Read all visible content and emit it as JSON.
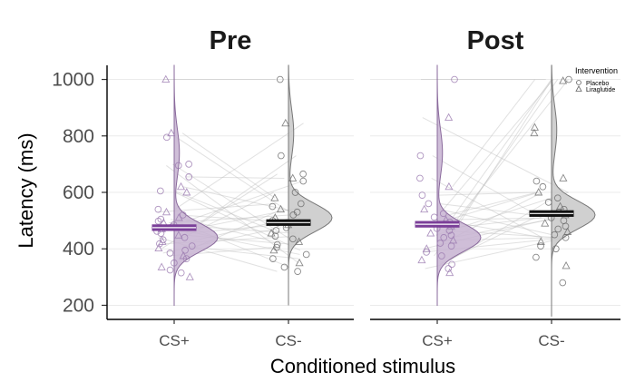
{
  "chart_data": {
    "type": "raincloud",
    "ylabel": "Latency (ms)",
    "xlabel": "Conditioned stimulus",
    "yticks": [
      200,
      400,
      600,
      800,
      1000
    ],
    "ylim": [
      150,
      1050
    ],
    "categories": [
      "CS+",
      "CS-"
    ],
    "grid": true,
    "legend": {
      "title": "Intervention",
      "placement": "top-right",
      "entries": [
        {
          "label": "Placebo",
          "shape": "circle"
        },
        {
          "label": "Liraglutide",
          "shape": "triangle"
        }
      ]
    },
    "colors": {
      "CS+": "#7b3f99",
      "CS-": "#111111"
    },
    "panels": [
      {
        "title": "Pre",
        "mean": {
          "CS+": 475,
          "CS-": 493
        },
        "mean_se": {
          "CS+": 10,
          "CS-": 10
        },
        "density_range": {
          "CS+": [
            200,
            1050
          ],
          "CS-": [
            200,
            1050
          ]
        },
        "density_peak": {
          "CS+": 440,
          "CS-": 510
        },
        "points": {
          "CS+": [
            {
              "y": 1000,
              "shape": "triangle"
            },
            {
              "y": 810,
              "shape": "triangle"
            },
            {
              "y": 795,
              "shape": "circle"
            },
            {
              "y": 700,
              "shape": "circle"
            },
            {
              "y": 695,
              "shape": "circle"
            },
            {
              "y": 655,
              "shape": "circle"
            },
            {
              "y": 620,
              "shape": "triangle"
            },
            {
              "y": 605,
              "shape": "circle"
            },
            {
              "y": 600,
              "shape": "triangle"
            },
            {
              "y": 540,
              "shape": "circle"
            },
            {
              "y": 530,
              "shape": "triangle"
            },
            {
              "y": 520,
              "shape": "circle"
            },
            {
              "y": 510,
              "shape": "triangle"
            },
            {
              "y": 505,
              "shape": "circle"
            },
            {
              "y": 498,
              "shape": "circle"
            },
            {
              "y": 492,
              "shape": "triangle"
            },
            {
              "y": 485,
              "shape": "circle"
            },
            {
              "y": 478,
              "shape": "circle"
            },
            {
              "y": 470,
              "shape": "triangle"
            },
            {
              "y": 462,
              "shape": "circle"
            },
            {
              "y": 455,
              "shape": "circle"
            },
            {
              "y": 448,
              "shape": "triangle"
            },
            {
              "y": 440,
              "shape": "circle"
            },
            {
              "y": 432,
              "shape": "circle"
            },
            {
              "y": 425,
              "shape": "triangle"
            },
            {
              "y": 418,
              "shape": "circle"
            },
            {
              "y": 410,
              "shape": "circle"
            },
            {
              "y": 402,
              "shape": "triangle"
            },
            {
              "y": 395,
              "shape": "circle"
            },
            {
              "y": 385,
              "shape": "circle"
            },
            {
              "y": 375,
              "shape": "triangle"
            },
            {
              "y": 365,
              "shape": "circle"
            },
            {
              "y": 350,
              "shape": "circle"
            },
            {
              "y": 335,
              "shape": "triangle"
            },
            {
              "y": 325,
              "shape": "circle"
            },
            {
              "y": 315,
              "shape": "circle"
            },
            {
              "y": 300,
              "shape": "triangle"
            }
          ],
          "CS-": [
            {
              "y": 1000,
              "shape": "circle"
            },
            {
              "y": 845,
              "shape": "triangle"
            },
            {
              "y": 730,
              "shape": "circle"
            },
            {
              "y": 665,
              "shape": "circle"
            },
            {
              "y": 650,
              "shape": "triangle"
            },
            {
              "y": 640,
              "shape": "circle"
            },
            {
              "y": 600,
              "shape": "circle"
            },
            {
              "y": 580,
              "shape": "triangle"
            },
            {
              "y": 560,
              "shape": "circle"
            },
            {
              "y": 550,
              "shape": "circle"
            },
            {
              "y": 540,
              "shape": "triangle"
            },
            {
              "y": 530,
              "shape": "circle"
            },
            {
              "y": 520,
              "shape": "circle"
            },
            {
              "y": 510,
              "shape": "triangle"
            },
            {
              "y": 500,
              "shape": "circle"
            },
            {
              "y": 492,
              "shape": "circle"
            },
            {
              "y": 485,
              "shape": "triangle"
            },
            {
              "y": 475,
              "shape": "circle"
            },
            {
              "y": 465,
              "shape": "circle"
            },
            {
              "y": 455,
              "shape": "triangle"
            },
            {
              "y": 445,
              "shape": "circle"
            },
            {
              "y": 435,
              "shape": "circle"
            },
            {
              "y": 425,
              "shape": "triangle"
            },
            {
              "y": 415,
              "shape": "circle"
            },
            {
              "y": 405,
              "shape": "circle"
            },
            {
              "y": 395,
              "shape": "triangle"
            },
            {
              "y": 380,
              "shape": "circle"
            },
            {
              "y": 365,
              "shape": "circle"
            },
            {
              "y": 350,
              "shape": "triangle"
            },
            {
              "y": 335,
              "shape": "circle"
            },
            {
              "y": 320,
              "shape": "circle"
            }
          ]
        }
      },
      {
        "title": "Post",
        "mean": {
          "CS+": 487,
          "CS-": 525
        },
        "mean_se": {
          "CS+": 10,
          "CS-": 10
        },
        "density_range": {
          "CS+": [
            200,
            1050
          ],
          "CS-": [
            160,
            1050
          ]
        },
        "density_peak": {
          "CS+": 440,
          "CS-": 520
        },
        "points": {
          "CS+": [
            {
              "y": 1000,
              "shape": "circle"
            },
            {
              "y": 865,
              "shape": "triangle"
            },
            {
              "y": 730,
              "shape": "circle"
            },
            {
              "y": 650,
              "shape": "circle"
            },
            {
              "y": 620,
              "shape": "triangle"
            },
            {
              "y": 590,
              "shape": "circle"
            },
            {
              "y": 560,
              "shape": "circle"
            },
            {
              "y": 540,
              "shape": "triangle"
            },
            {
              "y": 525,
              "shape": "circle"
            },
            {
              "y": 512,
              "shape": "circle"
            },
            {
              "y": 502,
              "shape": "triangle"
            },
            {
              "y": 495,
              "shape": "circle"
            },
            {
              "y": 488,
              "shape": "circle"
            },
            {
              "y": 480,
              "shape": "triangle"
            },
            {
              "y": 472,
              "shape": "circle"
            },
            {
              "y": 465,
              "shape": "circle"
            },
            {
              "y": 455,
              "shape": "triangle"
            },
            {
              "y": 448,
              "shape": "circle"
            },
            {
              "y": 440,
              "shape": "circle"
            },
            {
              "y": 430,
              "shape": "triangle"
            },
            {
              "y": 420,
              "shape": "circle"
            },
            {
              "y": 410,
              "shape": "circle"
            },
            {
              "y": 400,
              "shape": "triangle"
            },
            {
              "y": 388,
              "shape": "circle"
            },
            {
              "y": 375,
              "shape": "circle"
            },
            {
              "y": 360,
              "shape": "triangle"
            },
            {
              "y": 345,
              "shape": "circle"
            },
            {
              "y": 330,
              "shape": "circle"
            },
            {
              "y": 315,
              "shape": "triangle"
            }
          ],
          "CS-": [
            {
              "y": 1000,
              "shape": "circle"
            },
            {
              "y": 995,
              "shape": "triangle"
            },
            {
              "y": 830,
              "shape": "triangle"
            },
            {
              "y": 810,
              "shape": "triangle"
            },
            {
              "y": 650,
              "shape": "triangle"
            },
            {
              "y": 640,
              "shape": "circle"
            },
            {
              "y": 620,
              "shape": "circle"
            },
            {
              "y": 600,
              "shape": "triangle"
            },
            {
              "y": 580,
              "shape": "circle"
            },
            {
              "y": 565,
              "shape": "circle"
            },
            {
              "y": 550,
              "shape": "triangle"
            },
            {
              "y": 540,
              "shape": "circle"
            },
            {
              "y": 530,
              "shape": "circle"
            },
            {
              "y": 520,
              "shape": "triangle"
            },
            {
              "y": 510,
              "shape": "circle"
            },
            {
              "y": 500,
              "shape": "circle"
            },
            {
              "y": 490,
              "shape": "triangle"
            },
            {
              "y": 480,
              "shape": "circle"
            },
            {
              "y": 470,
              "shape": "circle"
            },
            {
              "y": 460,
              "shape": "triangle"
            },
            {
              "y": 450,
              "shape": "circle"
            },
            {
              "y": 440,
              "shape": "circle"
            },
            {
              "y": 425,
              "shape": "triangle"
            },
            {
              "y": 410,
              "shape": "circle"
            },
            {
              "y": 400,
              "shape": "circle"
            },
            {
              "y": 370,
              "shape": "circle"
            },
            {
              "y": 340,
              "shape": "triangle"
            },
            {
              "y": 280,
              "shape": "circle"
            }
          ]
        }
      }
    ]
  }
}
